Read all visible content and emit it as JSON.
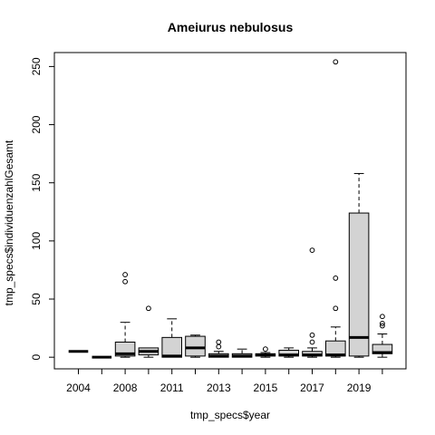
{
  "chart_data": {
    "type": "boxplot",
    "title": "Ameiurus nebulosus",
    "xlabel": "tmp_specs$year",
    "ylabel": "tmp_specs$individuenzahlGesamt",
    "ylim": [
      -10,
      262
    ],
    "yticks": [
      0,
      50,
      100,
      150,
      200,
      250
    ],
    "grid": false,
    "box_fill": "#d3d3d3",
    "line_color": "#000000",
    "categories": [
      "2004",
      "2007",
      "2008",
      "2010",
      "2011",
      "2012",
      "2013",
      "2014",
      "2015",
      "2016",
      "2017",
      "2018",
      "2019",
      "2020"
    ],
    "xtick_labels_shown": [
      "2004",
      "2008",
      "2011",
      "2013",
      "2015",
      "2017",
      "2019"
    ],
    "boxes": [
      {
        "year": "2004",
        "lower_whisker": 5,
        "q1": 5,
        "median": 5,
        "q3": 5,
        "upper_whisker": 5,
        "outliers": []
      },
      {
        "year": "2007",
        "lower_whisker": 0,
        "q1": 0,
        "median": 0,
        "q3": 0,
        "upper_whisker": 0,
        "outliers": []
      },
      {
        "year": "2008",
        "lower_whisker": 0,
        "q1": 1,
        "median": 3,
        "q3": 13,
        "upper_whisker": 30,
        "outliers": [
          65,
          71
        ]
      },
      {
        "year": "2010",
        "lower_whisker": 0,
        "q1": 2,
        "median": 5,
        "q3": 8,
        "upper_whisker": 8,
        "outliers": [
          42
        ]
      },
      {
        "year": "2011",
        "lower_whisker": 0,
        "q1": 0,
        "median": 1,
        "q3": 17,
        "upper_whisker": 33,
        "outliers": []
      },
      {
        "year": "2012",
        "lower_whisker": 0,
        "q1": 1,
        "median": 8,
        "q3": 18,
        "upper_whisker": 19,
        "outliers": []
      },
      {
        "year": "2013",
        "lower_whisker": 0,
        "q1": 0,
        "median": 1,
        "q3": 3,
        "upper_whisker": 5,
        "outliers": [
          9,
          13
        ]
      },
      {
        "year": "2014",
        "lower_whisker": 0,
        "q1": 0,
        "median": 1,
        "q3": 3,
        "upper_whisker": 7,
        "outliers": []
      },
      {
        "year": "2015",
        "lower_whisker": 0,
        "q1": 1,
        "median": 2,
        "q3": 3,
        "upper_whisker": 4,
        "outliers": [
          7
        ]
      },
      {
        "year": "2016",
        "lower_whisker": 0,
        "q1": 1,
        "median": 2,
        "q3": 6,
        "upper_whisker": 8,
        "outliers": []
      },
      {
        "year": "2017",
        "lower_whisker": 0,
        "q1": 1,
        "median": 2,
        "q3": 5,
        "upper_whisker": 8,
        "outliers": [
          13,
          19,
          92
        ]
      },
      {
        "year": "2018",
        "lower_whisker": 0,
        "q1": 1,
        "median": 2,
        "q3": 14,
        "upper_whisker": 26,
        "outliers": [
          42,
          68,
          254
        ]
      },
      {
        "year": "2019",
        "lower_whisker": 0,
        "q1": 1,
        "median": 17,
        "q3": 124,
        "upper_whisker": 158,
        "outliers": []
      },
      {
        "year": "2020",
        "lower_whisker": 0,
        "q1": 3,
        "median": 4,
        "q3": 11,
        "upper_whisker": 20,
        "outliers": [
          27,
          29,
          35
        ]
      }
    ]
  }
}
